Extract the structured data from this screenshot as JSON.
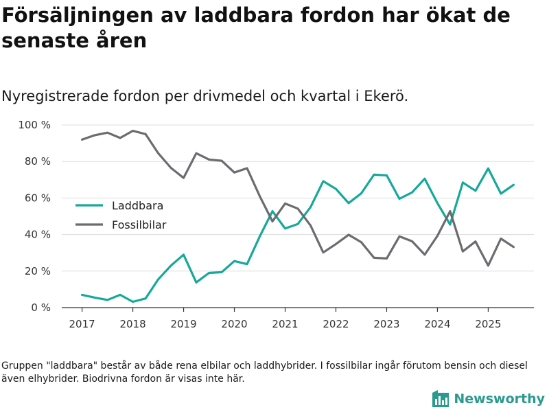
{
  "header": {
    "title": "Försäljningen av laddbara fordon har ökat de senaste åren",
    "subtitle": "Nyregistrerade fordon per drivmedel och kvartal i Ekerö."
  },
  "footnote": "Gruppen \"laddbara\" består av både rena elbilar och laddhybrider. I fossilbilar ingår förutom bensin och diesel även elhybrider. Biodrivna fordon är visas inte här.",
  "brand": {
    "name": "Newsworthy",
    "icon": "newsworthy-logo-icon"
  },
  "colors": {
    "laddbara": "#16a89a",
    "fossilbilar": "#6b6b70",
    "grid": "#dddddd",
    "axis": "#333333"
  },
  "chart_data": {
    "type": "line",
    "title": "Försäljningen av laddbara fordon har ökat de senaste åren",
    "subtitle": "Nyregistrerade fordon per drivmedel och kvartal i Ekerö.",
    "xlabel": "",
    "ylabel": "",
    "x": [
      2017.0,
      2017.25,
      2017.5,
      2017.75,
      2018.0,
      2018.25,
      2018.5,
      2018.75,
      2019.0,
      2019.25,
      2019.5,
      2019.75,
      2020.0,
      2020.25,
      2020.5,
      2020.75,
      2021.0,
      2021.25,
      2021.5,
      2021.75,
      2022.0,
      2022.25,
      2022.5,
      2022.75,
      2023.0,
      2023.25,
      2023.5,
      2023.75,
      2024.0,
      2024.25,
      2024.5,
      2024.75,
      2025.0,
      2025.25,
      2025.5
    ],
    "series": [
      {
        "name": "Laddbara",
        "color": "#16a89a",
        "values": [
          7,
          5.5,
          4.2,
          7,
          3.2,
          5,
          15.5,
          23,
          29,
          13.8,
          19,
          19.4,
          25.5,
          23.8,
          39,
          52.8,
          43.3,
          45.8,
          55,
          69.2,
          65,
          57.2,
          62.6,
          72.8,
          72.4,
          59.6,
          63.1,
          70.6,
          57.2,
          45.5,
          68.5,
          64,
          76.2,
          62.4,
          67.2
        ]
      },
      {
        "name": "Fossilbilar",
        "color": "#6b6b70",
        "values": [
          92,
          94.4,
          95.8,
          92.9,
          96.8,
          95,
          84.5,
          76.5,
          71,
          84.5,
          81.1,
          80.4,
          74,
          76.3,
          61,
          47.2,
          57,
          54.2,
          45,
          30.2,
          34.8,
          39.9,
          35.8,
          27.3,
          26.9,
          39,
          36.3,
          29,
          39.3,
          52.8,
          30.8,
          36.2,
          23,
          37.8,
          33.2
        ]
      }
    ],
    "x_ticks": [
      2017,
      2018,
      2019,
      2020,
      2021,
      2022,
      2023,
      2024,
      2025
    ],
    "x_tick_labels": [
      "2017",
      "2018",
      "2019",
      "2020",
      "2021",
      "2022",
      "2023",
      "2024",
      "2025"
    ],
    "xlim": [
      2016.6,
      2025.9
    ],
    "y_ticks": [
      0,
      20,
      40,
      60,
      80,
      100
    ],
    "y_tick_labels": [
      "0 %",
      "20 %",
      "40 %",
      "60 %",
      "80 %",
      "100 %"
    ],
    "ylim": [
      0,
      100
    ],
    "grid": true,
    "legend": {
      "position": "center-left",
      "entries": [
        "Laddbara",
        "Fossilbilar"
      ]
    }
  }
}
